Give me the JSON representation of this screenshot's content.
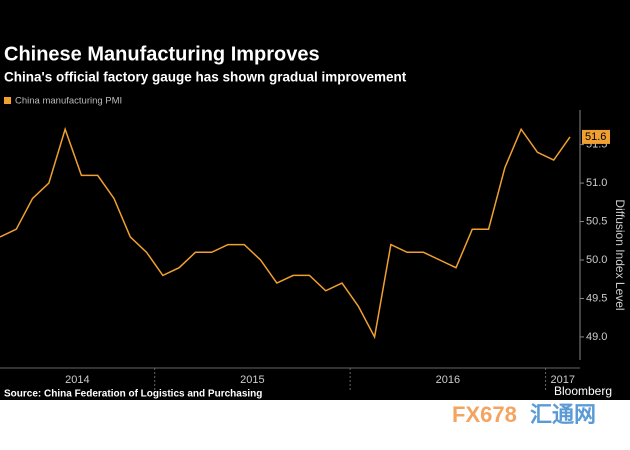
{
  "chart_data": {
    "type": "line",
    "title": "Chinese Manufacturing Improves",
    "subtitle": "China's official factory gauge has shown gradual improvement",
    "series": [
      {
        "name": "China manufacturing PMI",
        "color": "#f0a030",
        "values": [
          50.3,
          50.4,
          50.8,
          51.0,
          51.7,
          51.1,
          51.1,
          50.8,
          50.3,
          50.1,
          49.8,
          49.9,
          50.1,
          50.1,
          50.2,
          50.2,
          50.0,
          49.7,
          49.8,
          49.8,
          49.6,
          49.7,
          49.4,
          49.0,
          50.2,
          50.1,
          50.1,
          50.0,
          49.9,
          50.4,
          50.4,
          51.2,
          51.7,
          51.4,
          51.3,
          51.6
        ]
      }
    ],
    "year_labels": [
      "2014",
      "2015",
      "2016",
      "2017"
    ],
    "ylim": [
      48.7,
      51.95
    ],
    "yticks": [
      {
        "value": 49,
        "label": "49.0"
      },
      49.5,
      {
        "value": 50,
        "label": "50.0"
      },
      50.5,
      {
        "value": 51,
        "label": "51.0"
      },
      51.5
    ],
    "y_axis_label": "Diffusion Index Level",
    "source": "Source: China Federation of Logistics and Purchasing",
    "brand": "Bloomberg"
  },
  "watermark": {
    "brand": "FX678",
    "name": "汇通网"
  }
}
